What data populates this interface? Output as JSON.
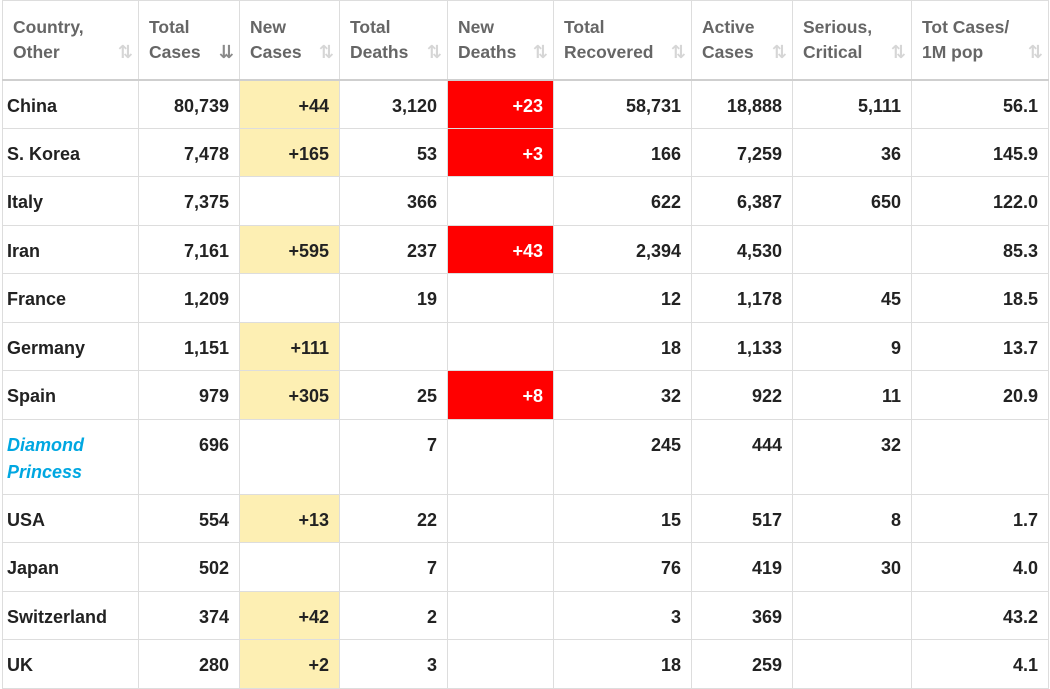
{
  "headers": [
    {
      "label": "Country,\nOther",
      "name": "country"
    },
    {
      "label": "Total\nCases",
      "name": "total-cases",
      "active": true
    },
    {
      "label": "New\nCases",
      "name": "new-cases"
    },
    {
      "label": "Total\nDeaths",
      "name": "total-deaths"
    },
    {
      "label": "New\nDeaths",
      "name": "new-deaths"
    },
    {
      "label": "Total\nRecovered",
      "name": "total-recovered"
    },
    {
      "label": "Active\nCases",
      "name": "active-cases"
    },
    {
      "label": "Serious,\nCritical",
      "name": "serious-critical"
    },
    {
      "label": "Tot Cases/\n1M pop",
      "name": "cases-per-million"
    }
  ],
  "sort_icon_inactive": "⇅",
  "sort_icon_active": "⇊",
  "colors": {
    "new_cases_highlight": "#fdefb3",
    "new_deaths_highlight": "#ff0000",
    "special_country": "#00a7e1"
  },
  "rows": [
    {
      "country": "China",
      "total_cases": "80,739",
      "new_cases": "+44",
      "total_deaths": "3,120",
      "new_deaths": "+23",
      "total_recovered": "58,731",
      "active_cases": "18,888",
      "serious_critical": "5,111",
      "tot_cases_1m": "56.1"
    },
    {
      "country": "S. Korea",
      "total_cases": "7,478",
      "new_cases": "+165",
      "total_deaths": "53",
      "new_deaths": "+3",
      "total_recovered": "166",
      "active_cases": "7,259",
      "serious_critical": "36",
      "tot_cases_1m": "145.9"
    },
    {
      "country": "Italy",
      "total_cases": "7,375",
      "new_cases": "",
      "total_deaths": "366",
      "new_deaths": "",
      "total_recovered": "622",
      "active_cases": "6,387",
      "serious_critical": "650",
      "tot_cases_1m": "122.0"
    },
    {
      "country": "Iran",
      "total_cases": "7,161",
      "new_cases": "+595",
      "total_deaths": "237",
      "new_deaths": "+43",
      "total_recovered": "2,394",
      "active_cases": "4,530",
      "serious_critical": "",
      "tot_cases_1m": "85.3"
    },
    {
      "country": "France",
      "total_cases": "1,209",
      "new_cases": "",
      "total_deaths": "19",
      "new_deaths": "",
      "total_recovered": "12",
      "active_cases": "1,178",
      "serious_critical": "45",
      "tot_cases_1m": "18.5"
    },
    {
      "country": "Germany",
      "total_cases": "1,151",
      "new_cases": "+111",
      "total_deaths": "",
      "new_deaths": "",
      "total_recovered": "18",
      "active_cases": "1,133",
      "serious_critical": "9",
      "tot_cases_1m": "13.7"
    },
    {
      "country": "Spain",
      "total_cases": "979",
      "new_cases": "+305",
      "total_deaths": "25",
      "new_deaths": "+8",
      "total_recovered": "32",
      "active_cases": "922",
      "serious_critical": "11",
      "tot_cases_1m": "20.9"
    },
    {
      "country": "Diamond Princess",
      "special": true,
      "total_cases": "696",
      "new_cases": "",
      "total_deaths": "7",
      "new_deaths": "",
      "total_recovered": "245",
      "active_cases": "444",
      "serious_critical": "32",
      "tot_cases_1m": ""
    },
    {
      "country": "USA",
      "total_cases": "554",
      "new_cases": "+13",
      "total_deaths": "22",
      "new_deaths": "",
      "total_recovered": "15",
      "active_cases": "517",
      "serious_critical": "8",
      "tot_cases_1m": "1.7"
    },
    {
      "country": "Japan",
      "total_cases": "502",
      "new_cases": "",
      "total_deaths": "7",
      "new_deaths": "",
      "total_recovered": "76",
      "active_cases": "419",
      "serious_critical": "30",
      "tot_cases_1m": "4.0"
    },
    {
      "country": "Switzerland",
      "total_cases": "374",
      "new_cases": "+42",
      "total_deaths": "2",
      "new_deaths": "",
      "total_recovered": "3",
      "active_cases": "369",
      "serious_critical": "",
      "tot_cases_1m": "43.2"
    },
    {
      "country": "UK",
      "total_cases": "280",
      "new_cases": "+2",
      "total_deaths": "3",
      "new_deaths": "",
      "total_recovered": "18",
      "active_cases": "259",
      "serious_critical": "",
      "tot_cases_1m": "4.1"
    }
  ]
}
